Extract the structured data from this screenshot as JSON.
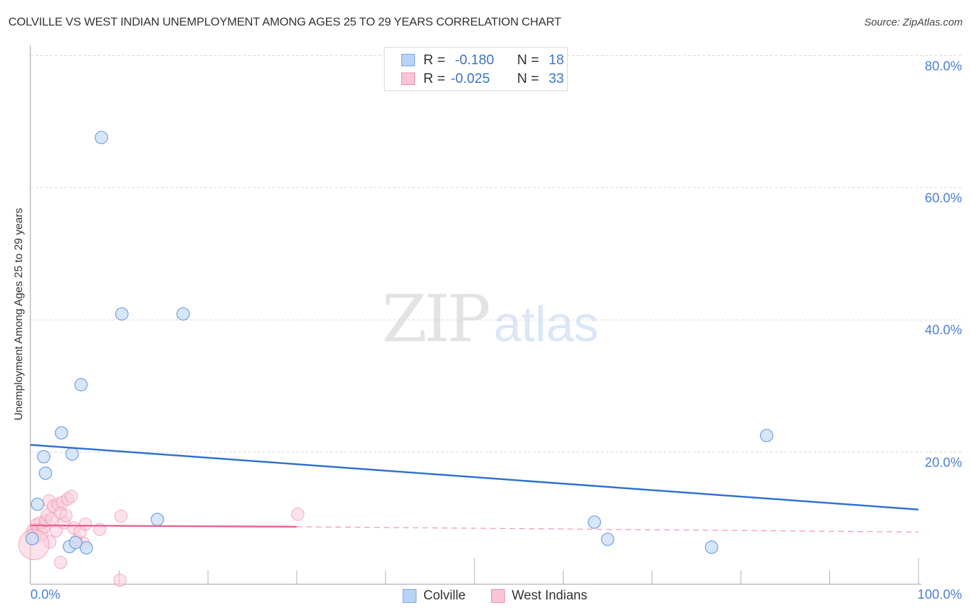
{
  "header": {
    "title": "COLVILLE VS WEST INDIAN UNEMPLOYMENT AMONG AGES 25 TO 29 YEARS CORRELATION CHART",
    "source": "Source: ZipAtlas.com"
  },
  "watermark": {
    "zip": "ZIP",
    "atlas": "atlas"
  },
  "legend": {
    "rows": [
      {
        "r_label": "R =",
        "r_value": "-0.180",
        "n_label": "N =",
        "n_value": "18",
        "color": "#b8d3f5",
        "border": "#7ba6e0"
      },
      {
        "r_label": "R =",
        "r_value": "-0.025",
        "n_label": "N =",
        "n_value": "33",
        "color": "#f9c5d4",
        "border": "#eb8fac"
      }
    ]
  },
  "axes": {
    "y_ticks": [
      "80.0%",
      "60.0%",
      "40.0%",
      "20.0%"
    ],
    "x_min_label": "0.0%",
    "x_max_label": "100.0%",
    "ylabel": "Unemployment Among Ages 25 to 29 years"
  },
  "bottom_legend": [
    {
      "label": "Colville",
      "color": "#b8d3f5",
      "border": "#7ba6e0"
    },
    {
      "label": "West Indians",
      "color": "#f9c5d4",
      "border": "#eb8fac"
    }
  ],
  "colors": {
    "colville_fill": "#c9ddf7",
    "colville_stroke": "#6f9fdf",
    "colville_trend": "#2f6fd0",
    "westindian_fill": "#f9cbd8",
    "westindian_stroke": "#eb8fac",
    "westindian_trend": "#e8648f",
    "grid": "#d8d8d8",
    "axis": "#bdbdbd",
    "tick_text": "#4a7fd1"
  },
  "chart_data": {
    "type": "scatter",
    "title": "COLVILLE VS WEST INDIAN UNEMPLOYMENT AMONG AGES 25 TO 29 YEARS CORRELATION CHART",
    "xlabel": "",
    "ylabel": "Unemployment Among Ages 25 to 29 years",
    "xlim": [
      0,
      100
    ],
    "ylim": [
      0,
      80
    ],
    "x_ticks": [
      "0.0%",
      "100.0%"
    ],
    "y_ticks": [
      "20.0%",
      "40.0%",
      "60.0%",
      "80.0%"
    ],
    "grid": true,
    "legend_position": "top-center and bottom",
    "series": [
      {
        "name": "Colville",
        "R": -0.18,
        "N": 18,
        "points": [
          [
            8.0,
            67.6
          ],
          [
            10.3,
            40.9
          ],
          [
            17.2,
            40.9
          ],
          [
            5.7,
            30.2
          ],
          [
            3.5,
            22.9
          ],
          [
            1.5,
            19.3
          ],
          [
            4.7,
            19.7
          ],
          [
            1.7,
            16.8
          ],
          [
            0.8,
            12.1
          ],
          [
            0.2,
            6.9
          ],
          [
            4.4,
            5.7
          ],
          [
            6.3,
            5.5
          ],
          [
            5.1,
            6.3
          ],
          [
            14.3,
            9.8
          ],
          [
            63.5,
            9.4
          ],
          [
            65.0,
            6.8
          ],
          [
            76.7,
            5.6
          ],
          [
            82.9,
            22.5
          ]
        ],
        "trend": {
          "x": [
            0,
            100
          ],
          "y": [
            21.1,
            11.3
          ]
        }
      },
      {
        "name": "West Indians",
        "R": -0.025,
        "N": 33,
        "points": [
          [
            0.1,
            7.5
          ],
          [
            0.3,
            8.2
          ],
          [
            0.5,
            7.0
          ],
          [
            0.7,
            9.0
          ],
          [
            0.9,
            8.3
          ],
          [
            1.1,
            9.3
          ],
          [
            1.3,
            7.6
          ],
          [
            1.5,
            8.6
          ],
          [
            1.7,
            9.6
          ],
          [
            1.9,
            10.5
          ],
          [
            2.1,
            12.6
          ],
          [
            2.4,
            9.9
          ],
          [
            2.6,
            11.8
          ],
          [
            2.9,
            8.1
          ],
          [
            3.1,
            12.1
          ],
          [
            3.4,
            10.8
          ],
          [
            3.6,
            12.4
          ],
          [
            3.8,
            9.3
          ],
          [
            4.0,
            10.4
          ],
          [
            4.2,
            12.9
          ],
          [
            4.6,
            13.3
          ],
          [
            4.9,
            8.5
          ],
          [
            5.2,
            6.6
          ],
          [
            5.6,
            7.9
          ],
          [
            6.2,
            9.1
          ],
          [
            6.0,
            6.2
          ],
          [
            7.8,
            8.3
          ],
          [
            3.4,
            3.3
          ],
          [
            10.2,
            10.3
          ],
          [
            10.1,
            0.6
          ],
          [
            30.1,
            10.6
          ],
          [
            2.2,
            6.4
          ],
          [
            0.4,
            6.0
          ]
        ],
        "trend_solid": {
          "x": [
            0,
            30
          ],
          "y": [
            8.9,
            8.7
          ]
        },
        "trend_dashed": {
          "x": [
            30,
            100
          ],
          "y": [
            8.7,
            7.9
          ]
        }
      }
    ]
  }
}
